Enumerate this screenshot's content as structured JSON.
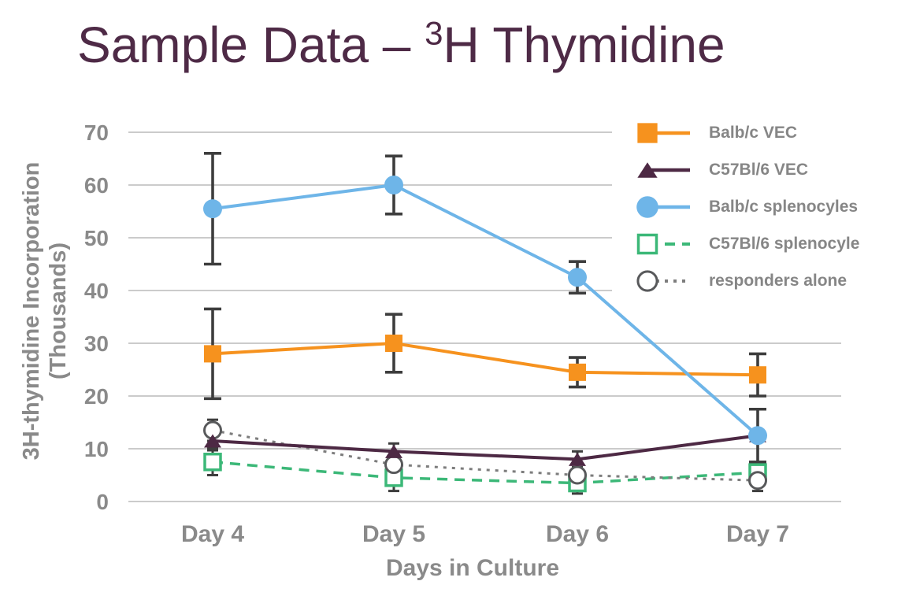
{
  "title": {
    "prefix": "Sample Data – ",
    "superscript": "3",
    "suffix": "H Thymidine",
    "color": "#4e2a46"
  },
  "chart_data": {
    "type": "line",
    "x_categories": [
      "Day 4",
      "Day 5",
      "Day 6",
      "Day 7"
    ],
    "xlabel": "Days in Culture",
    "ylabel_line1": "3H-thymidine Incorporation",
    "ylabel_line2": "(Thousands)",
    "ylim": [
      0,
      70
    ],
    "yticks": [
      0,
      10,
      20,
      30,
      40,
      50,
      60,
      70
    ],
    "grid": "horizontal",
    "legend_position": "top-right-inside",
    "series": [
      {
        "name": "Balb/c VEC",
        "color": "#f6921e",
        "marker": "filled-square",
        "line": "solid",
        "values": [
          28,
          30,
          24.5,
          24
        ],
        "errors": [
          8.5,
          5.5,
          2.8,
          4
        ]
      },
      {
        "name": "C57Bl/6 VEC",
        "color": "#4d2944",
        "marker": "filled-triangle",
        "line": "solid",
        "values": [
          11.5,
          9.5,
          8,
          12.5
        ],
        "errors": [
          1.8,
          1.5,
          1.5,
          0
        ]
      },
      {
        "name": "Balb/c splenocyles",
        "color": "#6eb5e8",
        "marker": "filled-circle",
        "line": "solid",
        "values": [
          55.5,
          60,
          42.5,
          12.5
        ],
        "errors": [
          10.5,
          5.5,
          3,
          5
        ]
      },
      {
        "name": "C57Bl/6 splenocyle",
        "color": "#3cb878",
        "marker": "open-square",
        "line": "dashed",
        "values": [
          7.5,
          4.5,
          3.5,
          5.5
        ],
        "errors": [
          2.5,
          2.5,
          2,
          1.5
        ]
      },
      {
        "name": "responders alone",
        "color": "#7d7d7d",
        "marker": "open-circle",
        "line": "dotted",
        "values": [
          13.5,
          7,
          5,
          4
        ],
        "errors": [
          2,
          1.5,
          1.5,
          2
        ]
      }
    ],
    "colors": {
      "error_bar": "#3d3d3d",
      "gridline": "#cbcbcb",
      "axis_text": "#8a8a8a",
      "open_circle_stroke": "#58595b"
    }
  }
}
